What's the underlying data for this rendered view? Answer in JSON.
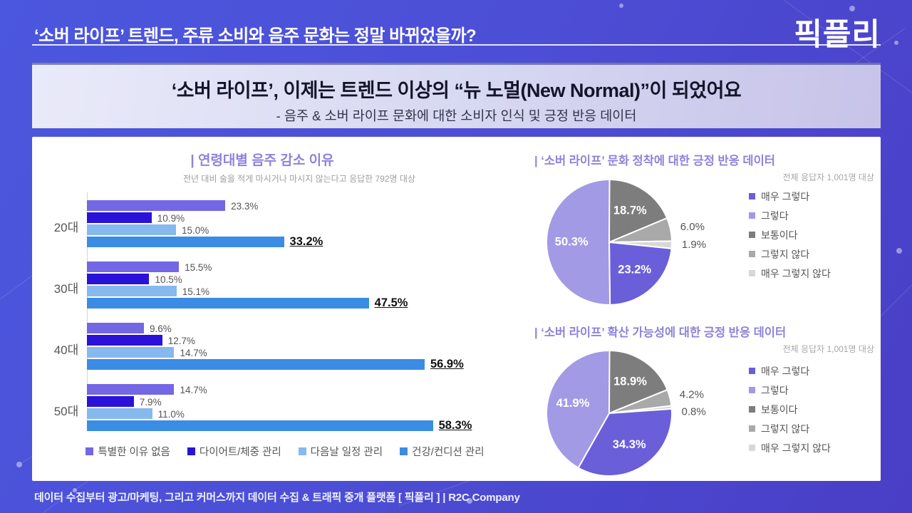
{
  "header": {
    "top_title": "‘소버 라이프’ 트렌드, 주류 소비와 음주 문화는 정말 바뀌었을까?",
    "logo": "픽플리",
    "main_title": "‘소버 라이프’, 이제는 트렌드 이상의 “뉴 노멀(New Normal)”이 되었어요",
    "subtitle": "- 음주 & 소버 라이프 문화에 대한 소비자 인식 및 긍정 반응 데이터"
  },
  "theme": {
    "background_blue": "#4b57de",
    "background_purple": "#4a3ec6",
    "section_title_purple": "#8e83da",
    "panel_white": "#ffffff"
  },
  "chart_data": [
    {
      "type": "bar",
      "orientation": "horizontal",
      "title": "| 연령대별 음주 감소 이유",
      "subtitle": "전년 대비 술을 적게 마시거나 마시지 않는다고 응답한 792명 대상",
      "categories": [
        "20대",
        "30대",
        "40대",
        "50대"
      ],
      "series": [
        {
          "name": "특별한 이유 없음",
          "color": "#7467e3",
          "values": [
            23.3,
            15.5,
            9.6,
            14.7
          ]
        },
        {
          "name": "다이어트/체중 관리",
          "color": "#2a12d8",
          "values": [
            10.9,
            10.5,
            12.7,
            7.9
          ]
        },
        {
          "name": "다음날 일정 관리",
          "color": "#86b9ee",
          "values": [
            15.0,
            15.1,
            14.7,
            11.0
          ]
        },
        {
          "name": "건강/컨디션 관리",
          "color": "#3a8ce4",
          "values": [
            33.2,
            47.5,
            56.9,
            58.3
          ],
          "emphasis": true
        }
      ],
      "xlim": [
        0,
        60
      ],
      "value_suffix": "%"
    },
    {
      "type": "pie",
      "title": "| ‘소버 라이프’ 문화 정착에 대한 긍정 반응 데이터",
      "subtitle": "전체 응답자 1,001명 대상",
      "slices": [
        {
          "label": "보통이다",
          "value": 18.7,
          "color": "#7d7d7d",
          "label_pos": "inside"
        },
        {
          "label": "그렇지 않다",
          "value": 6.0,
          "color": "#a9a9a9",
          "label_pos": "outside"
        },
        {
          "label": "매우 그렇지 않다",
          "value": 1.9,
          "color": "#d8d8d8",
          "label_pos": "outside"
        },
        {
          "label": "매우 그렇다",
          "value": 23.2,
          "color": "#6a5ed9",
          "label_pos": "inside"
        },
        {
          "label": "그렇다",
          "value": 50.3,
          "color": "#a29ae5",
          "label_pos": "inside"
        }
      ],
      "legend": [
        {
          "name": "매우 그렇다",
          "color": "#6a5ed9"
        },
        {
          "name": "그렇다",
          "color": "#a29ae5"
        },
        {
          "name": "보통이다",
          "color": "#7d7d7d"
        },
        {
          "name": "그렇지 않다",
          "color": "#a9a9a9"
        },
        {
          "name": "매우 그렇지 않다",
          "color": "#d8d8d8"
        }
      ]
    },
    {
      "type": "pie",
      "title": "| ‘소버 라이프’ 확산 가능성에 대한 긍정 반응 데이터",
      "subtitle": "전체 응답자 1,001명 대상",
      "slices": [
        {
          "label": "보통이다",
          "value": 18.9,
          "color": "#7d7d7d",
          "label_pos": "inside"
        },
        {
          "label": "그렇지 않다",
          "value": 4.2,
          "color": "#a9a9a9",
          "label_pos": "outside"
        },
        {
          "label": "매우 그렇지 않다",
          "value": 0.8,
          "color": "#d8d8d8",
          "label_pos": "outside",
          "label_dy": 8
        },
        {
          "label": "매우 그렇다",
          "value": 34.3,
          "color": "#6a5ed9",
          "label_pos": "inside"
        },
        {
          "label": "그렇다",
          "value": 41.9,
          "color": "#a29ae5",
          "label_pos": "inside"
        }
      ],
      "legend": [
        {
          "name": "매우 그렇다",
          "color": "#6a5ed9"
        },
        {
          "name": "그렇다",
          "color": "#a29ae5"
        },
        {
          "name": "보통이다",
          "color": "#7d7d7d"
        },
        {
          "name": "그렇지 않다",
          "color": "#a9a9a9"
        },
        {
          "name": "매우 그렇지 않다",
          "color": "#d8d8d8"
        }
      ]
    }
  ],
  "footer": {
    "text": "데이터 수집부터 광고/마케팅, 그리고 커머스까지 데이터 수집 & 트래픽 중개 플랫폼 [ 픽플리 ]  |  R2C Company"
  }
}
